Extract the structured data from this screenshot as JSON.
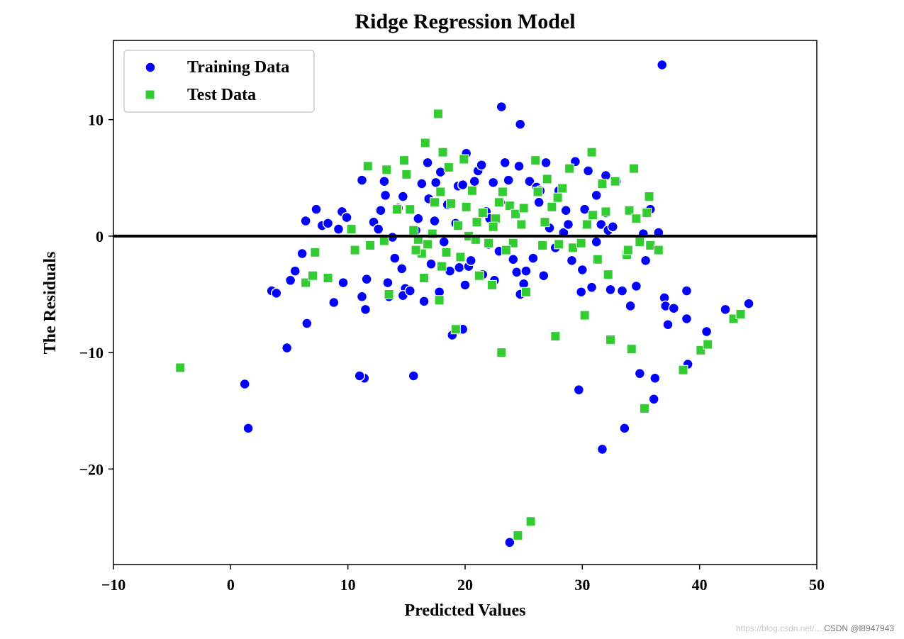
{
  "chart_data": {
    "type": "scatter",
    "title": "Ridge Regression Model",
    "xlabel": "Predicted Values",
    "ylabel": "The Residuals",
    "xlim": [
      -10,
      50
    ],
    "ylim": [
      -28.2,
      16.8
    ],
    "xticks": [
      -10,
      0,
      10,
      20,
      30,
      40,
      50
    ],
    "yticks": [
      -20,
      -10,
      0,
      10
    ],
    "xtick_labels": [
      "−10",
      "0",
      "10",
      "20",
      "30",
      "40",
      "50"
    ],
    "ytick_labels": [
      "−20",
      "−10",
      "0",
      "10"
    ],
    "reference_line": {
      "y": 0,
      "color": "#000000"
    },
    "legend": {
      "location": "top-left"
    },
    "series": [
      {
        "name": "Training Data",
        "marker": "circle",
        "color": "#0000ff",
        "points": [
          [
            1.2,
            -12.7
          ],
          [
            1.5,
            -16.5
          ],
          [
            3.5,
            -4.7
          ],
          [
            3.9,
            -4.9
          ],
          [
            4.8,
            -9.6
          ],
          [
            5.1,
            -3.8
          ],
          [
            5.5,
            -3
          ],
          [
            6.1,
            -1.5
          ],
          [
            6.4,
            1.3
          ],
          [
            6.5,
            -7.5
          ],
          [
            7.3,
            2.3
          ],
          [
            7.8,
            0.9
          ],
          [
            8.3,
            1.1
          ],
          [
            8.8,
            -5.7
          ],
          [
            9.2,
            0.6
          ],
          [
            9.5,
            2.1
          ],
          [
            9.9,
            1.6
          ],
          [
            9.6,
            -4.0
          ],
          [
            10.6,
            -1.2
          ],
          [
            11.2,
            -5.2
          ],
          [
            11.5,
            -6.3
          ],
          [
            11.2,
            4.8
          ],
          [
            11.6,
            -3.7
          ],
          [
            11.4,
            -12.2
          ],
          [
            11.0,
            -12.0
          ],
          [
            12.2,
            1.2
          ],
          [
            12.6,
            0.6
          ],
          [
            12.8,
            2.2
          ],
          [
            13.1,
            4.7
          ],
          [
            13.2,
            3.5
          ],
          [
            13.4,
            -4.0
          ],
          [
            13.8,
            -0.1
          ],
          [
            14.0,
            -1.9
          ],
          [
            14.3,
            2.4
          ],
          [
            14.6,
            -2.8
          ],
          [
            14.7,
            3.4
          ],
          [
            14.9,
            -4.5
          ],
          [
            14.7,
            -5.1
          ],
          [
            15.3,
            -4.7
          ],
          [
            15.6,
            -12.0
          ],
          [
            15.8,
            0.5
          ],
          [
            16.0,
            1.5
          ],
          [
            16.3,
            4.5
          ],
          [
            16.5,
            -5.6
          ],
          [
            16.8,
            6.3
          ],
          [
            16.9,
            3.2
          ],
          [
            17.1,
            -2.4
          ],
          [
            17.5,
            4.6
          ],
          [
            17.8,
            -4.8
          ],
          [
            17.9,
            5.5
          ],
          [
            18.2,
            -0.5
          ],
          [
            18.5,
            2.7
          ],
          [
            18.9,
            -8.5
          ],
          [
            19.2,
            1.1
          ],
          [
            19.4,
            4.3
          ],
          [
            19.5,
            -2.7
          ],
          [
            19.8,
            -8.0
          ],
          [
            20.1,
            7.1
          ],
          [
            20.0,
            -4.2
          ],
          [
            20.3,
            -2.6
          ],
          [
            20.5,
            -2.1
          ],
          [
            20.8,
            4.7
          ],
          [
            21.1,
            5.6
          ],
          [
            21.4,
            6.1
          ],
          [
            21.8,
            2.1
          ],
          [
            22.1,
            1.5
          ],
          [
            22.4,
            4.6
          ],
          [
            22.5,
            -3.8
          ],
          [
            22.9,
            -1.3
          ],
          [
            23.1,
            11.1
          ],
          [
            23.4,
            6.3
          ],
          [
            23.7,
            4.8
          ],
          [
            23.8,
            -26.3
          ],
          [
            24.1,
            -2.0
          ],
          [
            24.4,
            -3.1
          ],
          [
            24.6,
            6.0
          ],
          [
            24.7,
            9.6
          ],
          [
            24.7,
            -5.0
          ],
          [
            25.0,
            -4.1
          ],
          [
            25.2,
            -3.0
          ],
          [
            25.5,
            4.7
          ],
          [
            26.1,
            4.2
          ],
          [
            26.4,
            3.9
          ],
          [
            26.7,
            -3.4
          ],
          [
            26.9,
            6.3
          ],
          [
            27.2,
            0.7
          ],
          [
            27.7,
            -1.0
          ],
          [
            28.0,
            3.9
          ],
          [
            28.4,
            0.3
          ],
          [
            28.6,
            2.2
          ],
          [
            29.1,
            -2.1
          ],
          [
            29.4,
            6.4
          ],
          [
            29.7,
            -13.2
          ],
          [
            29.9,
            -4.8
          ],
          [
            30.0,
            -2.9
          ],
          [
            30.5,
            5.6
          ],
          [
            30.8,
            -4.4
          ],
          [
            31.2,
            3.5
          ],
          [
            31.2,
            -0.5
          ],
          [
            31.6,
            1.0
          ],
          [
            31.7,
            -18.3
          ],
          [
            32.0,
            5.2
          ],
          [
            32.2,
            0.5
          ],
          [
            32.4,
            -4.6
          ],
          [
            32.6,
            0.8
          ],
          [
            32.9,
            4.7
          ],
          [
            33.4,
            -4.7
          ],
          [
            33.6,
            -16.5
          ],
          [
            34.1,
            -6.0
          ],
          [
            34.6,
            -4.3
          ],
          [
            34.9,
            -11.8
          ],
          [
            35.2,
            0.2
          ],
          [
            35.4,
            -2.1
          ],
          [
            35.8,
            2.3
          ],
          [
            36.1,
            -14.0
          ],
          [
            36.2,
            -12.2
          ],
          [
            36.5,
            0.3
          ],
          [
            36.8,
            14.7
          ],
          [
            37.0,
            -5.3
          ],
          [
            37.1,
            -6.0
          ],
          [
            37.3,
            -7.6
          ],
          [
            37.8,
            -6.2
          ],
          [
            38.9,
            -4.7
          ],
          [
            38.9,
            -7.1
          ],
          [
            39.0,
            -11.0
          ],
          [
            40.6,
            -8.2
          ],
          [
            42.2,
            -6.3
          ],
          [
            44.2,
            -5.8
          ],
          [
            19.8,
            4.4
          ],
          [
            23.0,
            2.9
          ],
          [
            21.5,
            -3.3
          ],
          [
            26.3,
            2.9
          ],
          [
            28.8,
            1.0
          ],
          [
            17.4,
            1.3
          ],
          [
            30.2,
            2.3
          ],
          [
            13.5,
            -5.2
          ],
          [
            22.0,
            -0.7
          ],
          [
            25.8,
            -1.9
          ],
          [
            18.7,
            -3.0
          ],
          [
            32.0,
            2.0
          ]
        ]
      },
      {
        "name": "Test Data",
        "marker": "square",
        "color": "#33cc33",
        "points": [
          [
            -4.3,
            -11.3
          ],
          [
            6.4,
            -4.0
          ],
          [
            7.0,
            -3.4
          ],
          [
            7.2,
            -1.4
          ],
          [
            8.3,
            -3.6
          ],
          [
            10.3,
            0.6
          ],
          [
            10.6,
            -1.2
          ],
          [
            11.7,
            6.0
          ],
          [
            11.9,
            -0.8
          ],
          [
            13.1,
            -0.4
          ],
          [
            13.3,
            5.7
          ],
          [
            13.5,
            -5.0
          ],
          [
            14.2,
            2.3
          ],
          [
            14.8,
            6.5
          ],
          [
            15.0,
            5.3
          ],
          [
            15.3,
            2.3
          ],
          [
            15.6,
            0.5
          ],
          [
            16.0,
            -0.3
          ],
          [
            16.3,
            -1.5
          ],
          [
            16.5,
            -3.6
          ],
          [
            16.6,
            8.0
          ],
          [
            16.8,
            -0.7
          ],
          [
            17.4,
            2.9
          ],
          [
            17.7,
            10.5
          ],
          [
            17.8,
            -5.5
          ],
          [
            17.9,
            3.8
          ],
          [
            18.1,
            7.2
          ],
          [
            18.4,
            -1.4
          ],
          [
            18.6,
            5.9
          ],
          [
            18.8,
            2.8
          ],
          [
            19.2,
            -8.0
          ],
          [
            19.4,
            0.9
          ],
          [
            19.9,
            6.6
          ],
          [
            20.3,
            0.0
          ],
          [
            20.6,
            3.9
          ],
          [
            20.9,
            -0.3
          ],
          [
            21.2,
            -3.4
          ],
          [
            21.5,
            2.0
          ],
          [
            22.0,
            -0.6
          ],
          [
            22.3,
            -4.2
          ],
          [
            22.6,
            1.5
          ],
          [
            22.9,
            2.9
          ],
          [
            23.1,
            -10.0
          ],
          [
            23.2,
            3.8
          ],
          [
            23.8,
            2.6
          ],
          [
            24.1,
            -0.6
          ],
          [
            24.5,
            -25.7
          ],
          [
            24.8,
            1.0
          ],
          [
            25.2,
            -4.8
          ],
          [
            25.6,
            -24.5
          ],
          [
            26.0,
            6.5
          ],
          [
            26.2,
            3.8
          ],
          [
            26.6,
            -0.8
          ],
          [
            27.0,
            4.9
          ],
          [
            27.4,
            2.5
          ],
          [
            27.7,
            -8.6
          ],
          [
            28.0,
            -0.7
          ],
          [
            28.3,
            4.1
          ],
          [
            28.9,
            5.8
          ],
          [
            29.2,
            -1.0
          ],
          [
            29.9,
            -0.6
          ],
          [
            30.2,
            -6.8
          ],
          [
            30.4,
            1.0
          ],
          [
            30.8,
            7.2
          ],
          [
            30.9,
            1.8
          ],
          [
            31.3,
            -2.0
          ],
          [
            31.7,
            4.5
          ],
          [
            32.0,
            2.1
          ],
          [
            32.2,
            -3.3
          ],
          [
            32.4,
            -8.9
          ],
          [
            32.8,
            4.7
          ],
          [
            33.8,
            -1.6
          ],
          [
            34.0,
            2.2
          ],
          [
            34.2,
            -9.7
          ],
          [
            34.4,
            5.8
          ],
          [
            34.6,
            1.5
          ],
          [
            34.9,
            -0.5
          ],
          [
            35.3,
            -14.8
          ],
          [
            35.5,
            2.0
          ],
          [
            35.7,
            3.4
          ],
          [
            35.8,
            -0.8
          ],
          [
            36.5,
            -1.2
          ],
          [
            38.6,
            -11.5
          ],
          [
            40.1,
            -9.8
          ],
          [
            40.7,
            -9.3
          ],
          [
            42.9,
            -7.1
          ],
          [
            43.5,
            -6.7
          ],
          [
            20.1,
            2.5
          ],
          [
            22.4,
            0.8
          ],
          [
            18.0,
            -2.6
          ],
          [
            24.3,
            1.9
          ],
          [
            26.8,
            1.2
          ],
          [
            19.6,
            -1.8
          ],
          [
            21.0,
            1.2
          ],
          [
            25.0,
            2.4
          ],
          [
            17.2,
            0.2
          ],
          [
            23.5,
            -1.2
          ],
          [
            27.9,
            3.3
          ],
          [
            33.9,
            -1.2
          ],
          [
            15.8,
            -1.2
          ]
        ]
      }
    ]
  },
  "watermark": {
    "blog_text": "https://blog.csdn.net/...",
    "csdn_text": "CSDN @l8947943"
  }
}
